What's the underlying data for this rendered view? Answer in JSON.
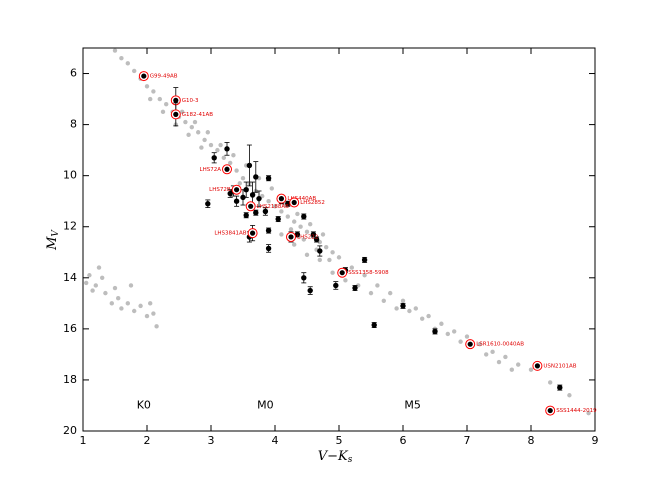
{
  "chart_data": {
    "type": "scatter",
    "xlabel": {
      "main": "V−K",
      "sub": "s"
    },
    "ylabel": {
      "main": "M",
      "sub": "V"
    },
    "xlim": [
      1,
      9
    ],
    "ylim": [
      20,
      5
    ],
    "xticks": [
      1,
      2,
      3,
      4,
      5,
      6,
      7,
      8,
      9
    ],
    "yticks": [
      6,
      8,
      10,
      12,
      14,
      16,
      18,
      20
    ],
    "annotations": [
      {
        "text": "K0",
        "x": 1.95,
        "y": 19
      },
      {
        "text": "M0",
        "x": 3.85,
        "y": 19
      },
      {
        "text": "M5",
        "x": 6.15,
        "y": 19
      }
    ],
    "series": [
      {
        "color": "#bdbdbd",
        "x": [
          1.5,
          1.6,
          1.7,
          1.8,
          1.9,
          2.0,
          2.1,
          2.2,
          2.3,
          2.4,
          2.5,
          2.6,
          2.7,
          2.8,
          2.9,
          3.0,
          3.1,
          3.2,
          3.3,
          3.4,
          3.5,
          3.6,
          3.7,
          3.8,
          3.9,
          4.0,
          4.1,
          4.2,
          4.3,
          4.4,
          4.5,
          4.6,
          4.7,
          4.8,
          4.9,
          5.0,
          5.2,
          5.4,
          5.6,
          5.8,
          6.0,
          6.2,
          6.4,
          6.6,
          6.8,
          7.0,
          7.2,
          7.4,
          7.6,
          7.8,
          8.0,
          8.3,
          8.6,
          8.9,
          2.05,
          2.25,
          2.45,
          2.65,
          2.85,
          3.05,
          3.25,
          3.45,
          3.65,
          3.85,
          4.05,
          4.25,
          4.45,
          4.65,
          4.85,
          5.05,
          2.55,
          2.75,
          2.95,
          3.15,
          3.35,
          3.55,
          3.75,
          3.95,
          4.15,
          4.35,
          4.55,
          4.75,
          4.1,
          4.3,
          4.5,
          4.7,
          4.9,
          5.1,
          5.3,
          5.5,
          5.7,
          5.9,
          6.1,
          6.3,
          6.5,
          6.7,
          6.9,
          7.3,
          7.5,
          7.7,
          1.05,
          1.1,
          1.2,
          1.3,
          1.35,
          1.45,
          1.55,
          1.6,
          1.7,
          1.8,
          1.9,
          2.0,
          2.1,
          2.15,
          1.5,
          1.25,
          1.15,
          1.75,
          2.05
        ],
        "values": [
          5.1,
          5.4,
          5.6,
          5.9,
          6.2,
          6.5,
          6.7,
          7.0,
          7.2,
          7.5,
          7.7,
          7.9,
          8.1,
          8.3,
          8.6,
          8.8,
          9.0,
          9.3,
          9.5,
          9.8,
          10.1,
          10.3,
          10.6,
          10.8,
          11.0,
          11.2,
          11.4,
          11.6,
          11.8,
          12.0,
          12.2,
          12.4,
          12.6,
          12.8,
          13.0,
          13.2,
          13.6,
          13.9,
          14.3,
          14.6,
          14.9,
          15.2,
          15.5,
          15.8,
          16.1,
          16.3,
          16.6,
          16.9,
          17.1,
          17.4,
          17.6,
          18.1,
          18.6,
          19.3,
          7.0,
          7.5,
          8.0,
          8.4,
          8.9,
          9.3,
          9.8,
          10.3,
          10.8,
          11.3,
          11.7,
          12.1,
          12.5,
          12.9,
          13.3,
          13.7,
          7.5,
          7.9,
          8.3,
          8.8,
          9.2,
          9.6,
          10.1,
          10.5,
          11.1,
          11.5,
          11.9,
          12.3,
          12.3,
          12.7,
          13.1,
          13.3,
          13.8,
          14.1,
          14.3,
          14.6,
          14.9,
          15.2,
          15.3,
          15.6,
          16.0,
          16.2,
          16.5,
          17.0,
          17.3,
          17.6,
          14.2,
          13.9,
          14.3,
          14.0,
          14.6,
          15.0,
          14.8,
          15.2,
          15.0,
          15.3,
          15.1,
          15.5,
          15.4,
          15.9,
          14.4,
          13.6,
          14.5,
          14.3,
          15.0
        ]
      },
      {
        "color": "#000000",
        "x": [
          3.05,
          3.25,
          3.6,
          3.7,
          3.35,
          3.3,
          3.55,
          3.65,
          3.5,
          3.4,
          2.95,
          3.75,
          3.9,
          4.1,
          4.2,
          4.05,
          3.85,
          3.55,
          3.7,
          4.45,
          3.9,
          4.35,
          4.6,
          4.65,
          4.7,
          3.9,
          4.45,
          4.55,
          4.95,
          5.1,
          5.25,
          5.4,
          5.55,
          6.0,
          6.5,
          8.45,
          3.6
        ],
        "values": [
          9.3,
          8.95,
          9.6,
          10.05,
          10.6,
          10.7,
          10.55,
          10.75,
          10.85,
          11.0,
          11.1,
          10.9,
          10.1,
          11.0,
          11.1,
          11.7,
          11.4,
          11.55,
          11.45,
          11.6,
          12.15,
          12.3,
          12.3,
          12.5,
          12.95,
          12.85,
          14.0,
          14.5,
          14.3,
          13.7,
          14.4,
          13.3,
          15.85,
          15.1,
          16.1,
          18.3,
          12.4
        ],
        "errors": [
          0.2,
          0.25,
          0.8,
          0.6,
          0.2,
          0.15,
          0.3,
          0.5,
          0.3,
          0.2,
          0.15,
          0.3,
          0.1,
          0.1,
          0.1,
          0.1,
          0.15,
          0.1,
          0.1,
          0.1,
          0.1,
          0.1,
          0.1,
          0.1,
          0.2,
          0.15,
          0.2,
          0.15,
          0.15,
          0.1,
          0.1,
          0.1,
          0.1,
          0.1,
          0.1,
          0.1,
          0.2
        ]
      },
      {
        "color": "#ff0000",
        "x": [
          1.95,
          2.45,
          2.45,
          3.25,
          3.4,
          3.62,
          4.1,
          4.3,
          3.65,
          4.25,
          5.05,
          7.05,
          8.1,
          8.3
        ],
        "values": [
          6.1,
          7.05,
          7.6,
          9.75,
          10.55,
          11.2,
          10.9,
          11.05,
          12.25,
          12.4,
          13.8,
          16.6,
          17.45,
          19.2
        ],
        "errors": [
          0.1,
          0.5,
          0.45,
          0.1,
          0.1,
          0.15,
          0.1,
          0.1,
          0.3,
          0.2,
          0.1,
          0.1,
          0.1,
          0.1
        ],
        "labels": [
          "G99-49AB",
          "G10-3",
          "G182-41AB",
          "LHS72A",
          "LHS72B",
          "LHS2188AB",
          "LHS440AB",
          "LHS2852",
          "LHS3841AB",
          "LHS222",
          "SSS1358-5908",
          "LSR1610-0040AB",
          "USN2101AB",
          "SSS1444-2019"
        ]
      }
    ]
  }
}
